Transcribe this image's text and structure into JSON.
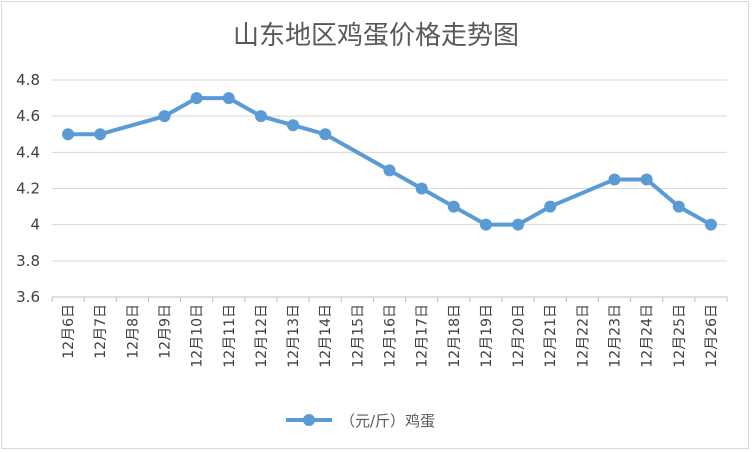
{
  "chart_data": {
    "type": "line",
    "title": "山东地区鸡蛋价格走势图",
    "xlabel": "",
    "ylabel": "",
    "categories": [
      "12月6日",
      "12月7日",
      "12月8日",
      "12月9日",
      "12月10日",
      "12月11日",
      "12月12日",
      "12月13日",
      "12月14日",
      "12月15日",
      "12月16日",
      "12月17日",
      "12月18日",
      "12月19日",
      "12月20日",
      "12月21日",
      "12月22日",
      "12月23日",
      "12月24日",
      "12月25日",
      "12月26日"
    ],
    "series": [
      {
        "name": "（元/斤）鸡蛋",
        "color": "#5b9bd5",
        "points": [
          {
            "category": "12月6日",
            "value": 4.5
          },
          {
            "category": "12月7日",
            "value": 4.5
          },
          {
            "category": "12月9日",
            "value": 4.6
          },
          {
            "category": "12月10日",
            "value": 4.7
          },
          {
            "category": "12月11日",
            "value": 4.7
          },
          {
            "category": "12月12日",
            "value": 4.6
          },
          {
            "category": "12月13日",
            "value": 4.55
          },
          {
            "category": "12月14日",
            "value": 4.5
          },
          {
            "category": "12月16日",
            "value": 4.3
          },
          {
            "category": "12月17日",
            "value": 4.2
          },
          {
            "category": "12月18日",
            "value": 4.1
          },
          {
            "category": "12月19日",
            "value": 4.0
          },
          {
            "category": "12月20日",
            "value": 4.0
          },
          {
            "category": "12月21日",
            "value": 4.1
          },
          {
            "category": "12月23日",
            "value": 4.25
          },
          {
            "category": "12月24日",
            "value": 4.25
          },
          {
            "category": "12月25日",
            "value": 4.1
          },
          {
            "category": "12月26日",
            "value": 4.0
          }
        ]
      }
    ],
    "ylim": [
      3.6,
      4.8
    ],
    "yticks": [
      "3.6",
      "3.8",
      "4",
      "4.2",
      "4.4",
      "4.6",
      "4.8"
    ],
    "grid": true,
    "legend_position": "bottom"
  }
}
